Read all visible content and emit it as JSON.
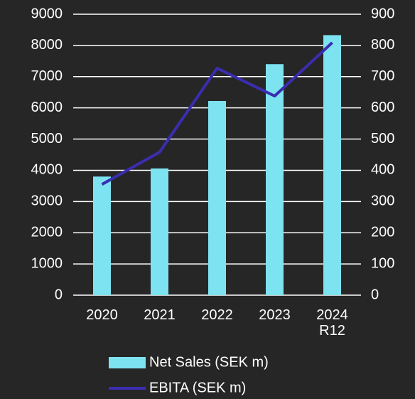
{
  "chart_data": {
    "type": "bar",
    "categories": [
      "2020",
      "2021",
      "2022",
      "2023",
      "2024\nR12"
    ],
    "series": [
      {
        "name": "Net Sales (SEK m)",
        "type": "bar",
        "color": "#7de3f0",
        "values": [
          3800,
          4060,
          6220,
          7400,
          8330
        ]
      },
      {
        "name": "EBITA (SEK m)",
        "type": "line",
        "axis": "y2",
        "color": "#3b2db0",
        "values": [
          355,
          458,
          727,
          638,
          809
        ]
      }
    ],
    "ylim": [
      0,
      9000
    ],
    "yticks": [
      0,
      1000,
      2000,
      3000,
      4000,
      5000,
      6000,
      7000,
      8000,
      9000
    ],
    "y2lim": [
      0,
      900
    ],
    "y2ticks": [
      0,
      100,
      200,
      300,
      400,
      500,
      600,
      700,
      800,
      900
    ],
    "grid": true,
    "legend": "bottom"
  }
}
